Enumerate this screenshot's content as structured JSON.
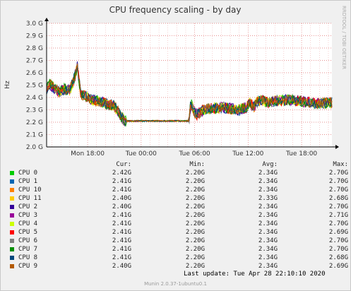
{
  "title": "CPU frequency scaling - by day",
  "ylabel": "Hz",
  "watermark": "RRDTOOL / TOBI OETIKER",
  "chart_data": {
    "type": "line",
    "title": "CPU frequency scaling - by day",
    "ylabel": "Hz",
    "ylim": [
      2.0,
      3.0
    ],
    "yticks": [
      {
        "v": 2.0,
        "label": "2.0 G"
      },
      {
        "v": 2.1,
        "label": "2.1 G"
      },
      {
        "v": 2.2,
        "label": "2.2 G"
      },
      {
        "v": 2.3,
        "label": "2.3 G"
      },
      {
        "v": 2.4,
        "label": "2.4 G"
      },
      {
        "v": 2.5,
        "label": "2.5 G"
      },
      {
        "v": 2.6,
        "label": "2.6 G"
      },
      {
        "v": 2.7,
        "label": "2.7 G"
      },
      {
        "v": 2.8,
        "label": "2.8 G"
      },
      {
        "v": 2.9,
        "label": "2.9 G"
      },
      {
        "v": 3.0,
        "label": "3.0 G"
      }
    ],
    "xlim": [
      -4.6,
      27.4
    ],
    "xticks": [
      {
        "v": 0,
        "label": "Mon 18:00"
      },
      {
        "v": 6,
        "label": "Tue 00:00"
      },
      {
        "v": 12,
        "label": "Tue 06:00"
      },
      {
        "v": 18,
        "label": "Tue 12:00"
      },
      {
        "v": 24,
        "label": "Tue 18:00"
      }
    ],
    "grid": true,
    "profile": [
      [
        -4.6,
        2.47
      ],
      [
        -4.3,
        2.51
      ],
      [
        -3.8,
        2.48
      ],
      [
        -3.2,
        2.44
      ],
      [
        -2.6,
        2.47
      ],
      [
        -2.0,
        2.46
      ],
      [
        -1.6,
        2.53
      ],
      [
        -1.3,
        2.6
      ],
      [
        -1.15,
        2.66
      ],
      [
        -1.0,
        2.56
      ],
      [
        -0.8,
        2.43
      ],
      [
        -0.3,
        2.41
      ],
      [
        0.5,
        2.38
      ],
      [
        1.5,
        2.37
      ],
      [
        2.3,
        2.34
      ],
      [
        2.9,
        2.34
      ],
      [
        3.4,
        2.29
      ],
      [
        3.8,
        2.24
      ],
      [
        4.2,
        2.21
      ],
      [
        5.0,
        2.21
      ],
      [
        8.0,
        2.21
      ],
      [
        11.2,
        2.21
      ],
      [
        11.45,
        2.21
      ],
      [
        11.55,
        2.36
      ],
      [
        11.9,
        2.29
      ],
      [
        12.2,
        2.26
      ],
      [
        13.0,
        2.3
      ],
      [
        14.0,
        2.31
      ],
      [
        15.0,
        2.32
      ],
      [
        16.0,
        2.31
      ],
      [
        17.0,
        2.3
      ],
      [
        17.8,
        2.32
      ],
      [
        18.2,
        2.36
      ],
      [
        18.6,
        2.32
      ],
      [
        19.0,
        2.36
      ],
      [
        19.6,
        2.38
      ],
      [
        20.2,
        2.36
      ],
      [
        21.0,
        2.37
      ],
      [
        22.0,
        2.38
      ],
      [
        23.0,
        2.38
      ],
      [
        24.0,
        2.37
      ],
      [
        25.0,
        2.36
      ],
      [
        26.0,
        2.35
      ],
      [
        26.5,
        2.35
      ],
      [
        27.0,
        2.36
      ]
    ],
    "series": [
      {
        "name": "CPU 0",
        "color": "#00cc00",
        "cur": "2.42G",
        "min": "2.20G",
        "avg": "2.34G",
        "max": "2.70G"
      },
      {
        "name": "CPU 1",
        "color": "#0066b3",
        "cur": "2.41G",
        "min": "2.20G",
        "avg": "2.34G",
        "max": "2.70G"
      },
      {
        "name": "CPU 10",
        "color": "#ff8000",
        "cur": "2.41G",
        "min": "2.20G",
        "avg": "2.34G",
        "max": "2.70G"
      },
      {
        "name": "CPU 11",
        "color": "#ffcc00",
        "cur": "2.40G",
        "min": "2.20G",
        "avg": "2.33G",
        "max": "2.68G"
      },
      {
        "name": "CPU 2",
        "color": "#330099",
        "cur": "2.40G",
        "min": "2.20G",
        "avg": "2.34G",
        "max": "2.70G"
      },
      {
        "name": "CPU 3",
        "color": "#990099",
        "cur": "2.41G",
        "min": "2.20G",
        "avg": "2.34G",
        "max": "2.71G"
      },
      {
        "name": "CPU 4",
        "color": "#ccff00",
        "cur": "2.41G",
        "min": "2.20G",
        "avg": "2.34G",
        "max": "2.70G"
      },
      {
        "name": "CPU 5",
        "color": "#ff0000",
        "cur": "2.41G",
        "min": "2.20G",
        "avg": "2.34G",
        "max": "2.69G"
      },
      {
        "name": "CPU 6",
        "color": "#808080",
        "cur": "2.41G",
        "min": "2.20G",
        "avg": "2.34G",
        "max": "2.70G"
      },
      {
        "name": "CPU 7",
        "color": "#008f00",
        "cur": "2.41G",
        "min": "2.20G",
        "avg": "2.34G",
        "max": "2.70G"
      },
      {
        "name": "CPU 8",
        "color": "#00487d",
        "cur": "2.41G",
        "min": "2.20G",
        "avg": "2.34G",
        "max": "2.68G"
      },
      {
        "name": "CPU 9",
        "color": "#b35a00",
        "cur": "2.40G",
        "min": "2.20G",
        "avg": "2.34G",
        "max": "2.69G"
      }
    ]
  },
  "legend": {
    "headers": {
      "cur": "Cur:",
      "min": "Min:",
      "avg": "Avg:",
      "max": "Max:"
    }
  },
  "last_update": "Last update: Tue Apr 28 22:10:10 2020",
  "footer": "Munin 2.0.37-1ubuntu0.1"
}
